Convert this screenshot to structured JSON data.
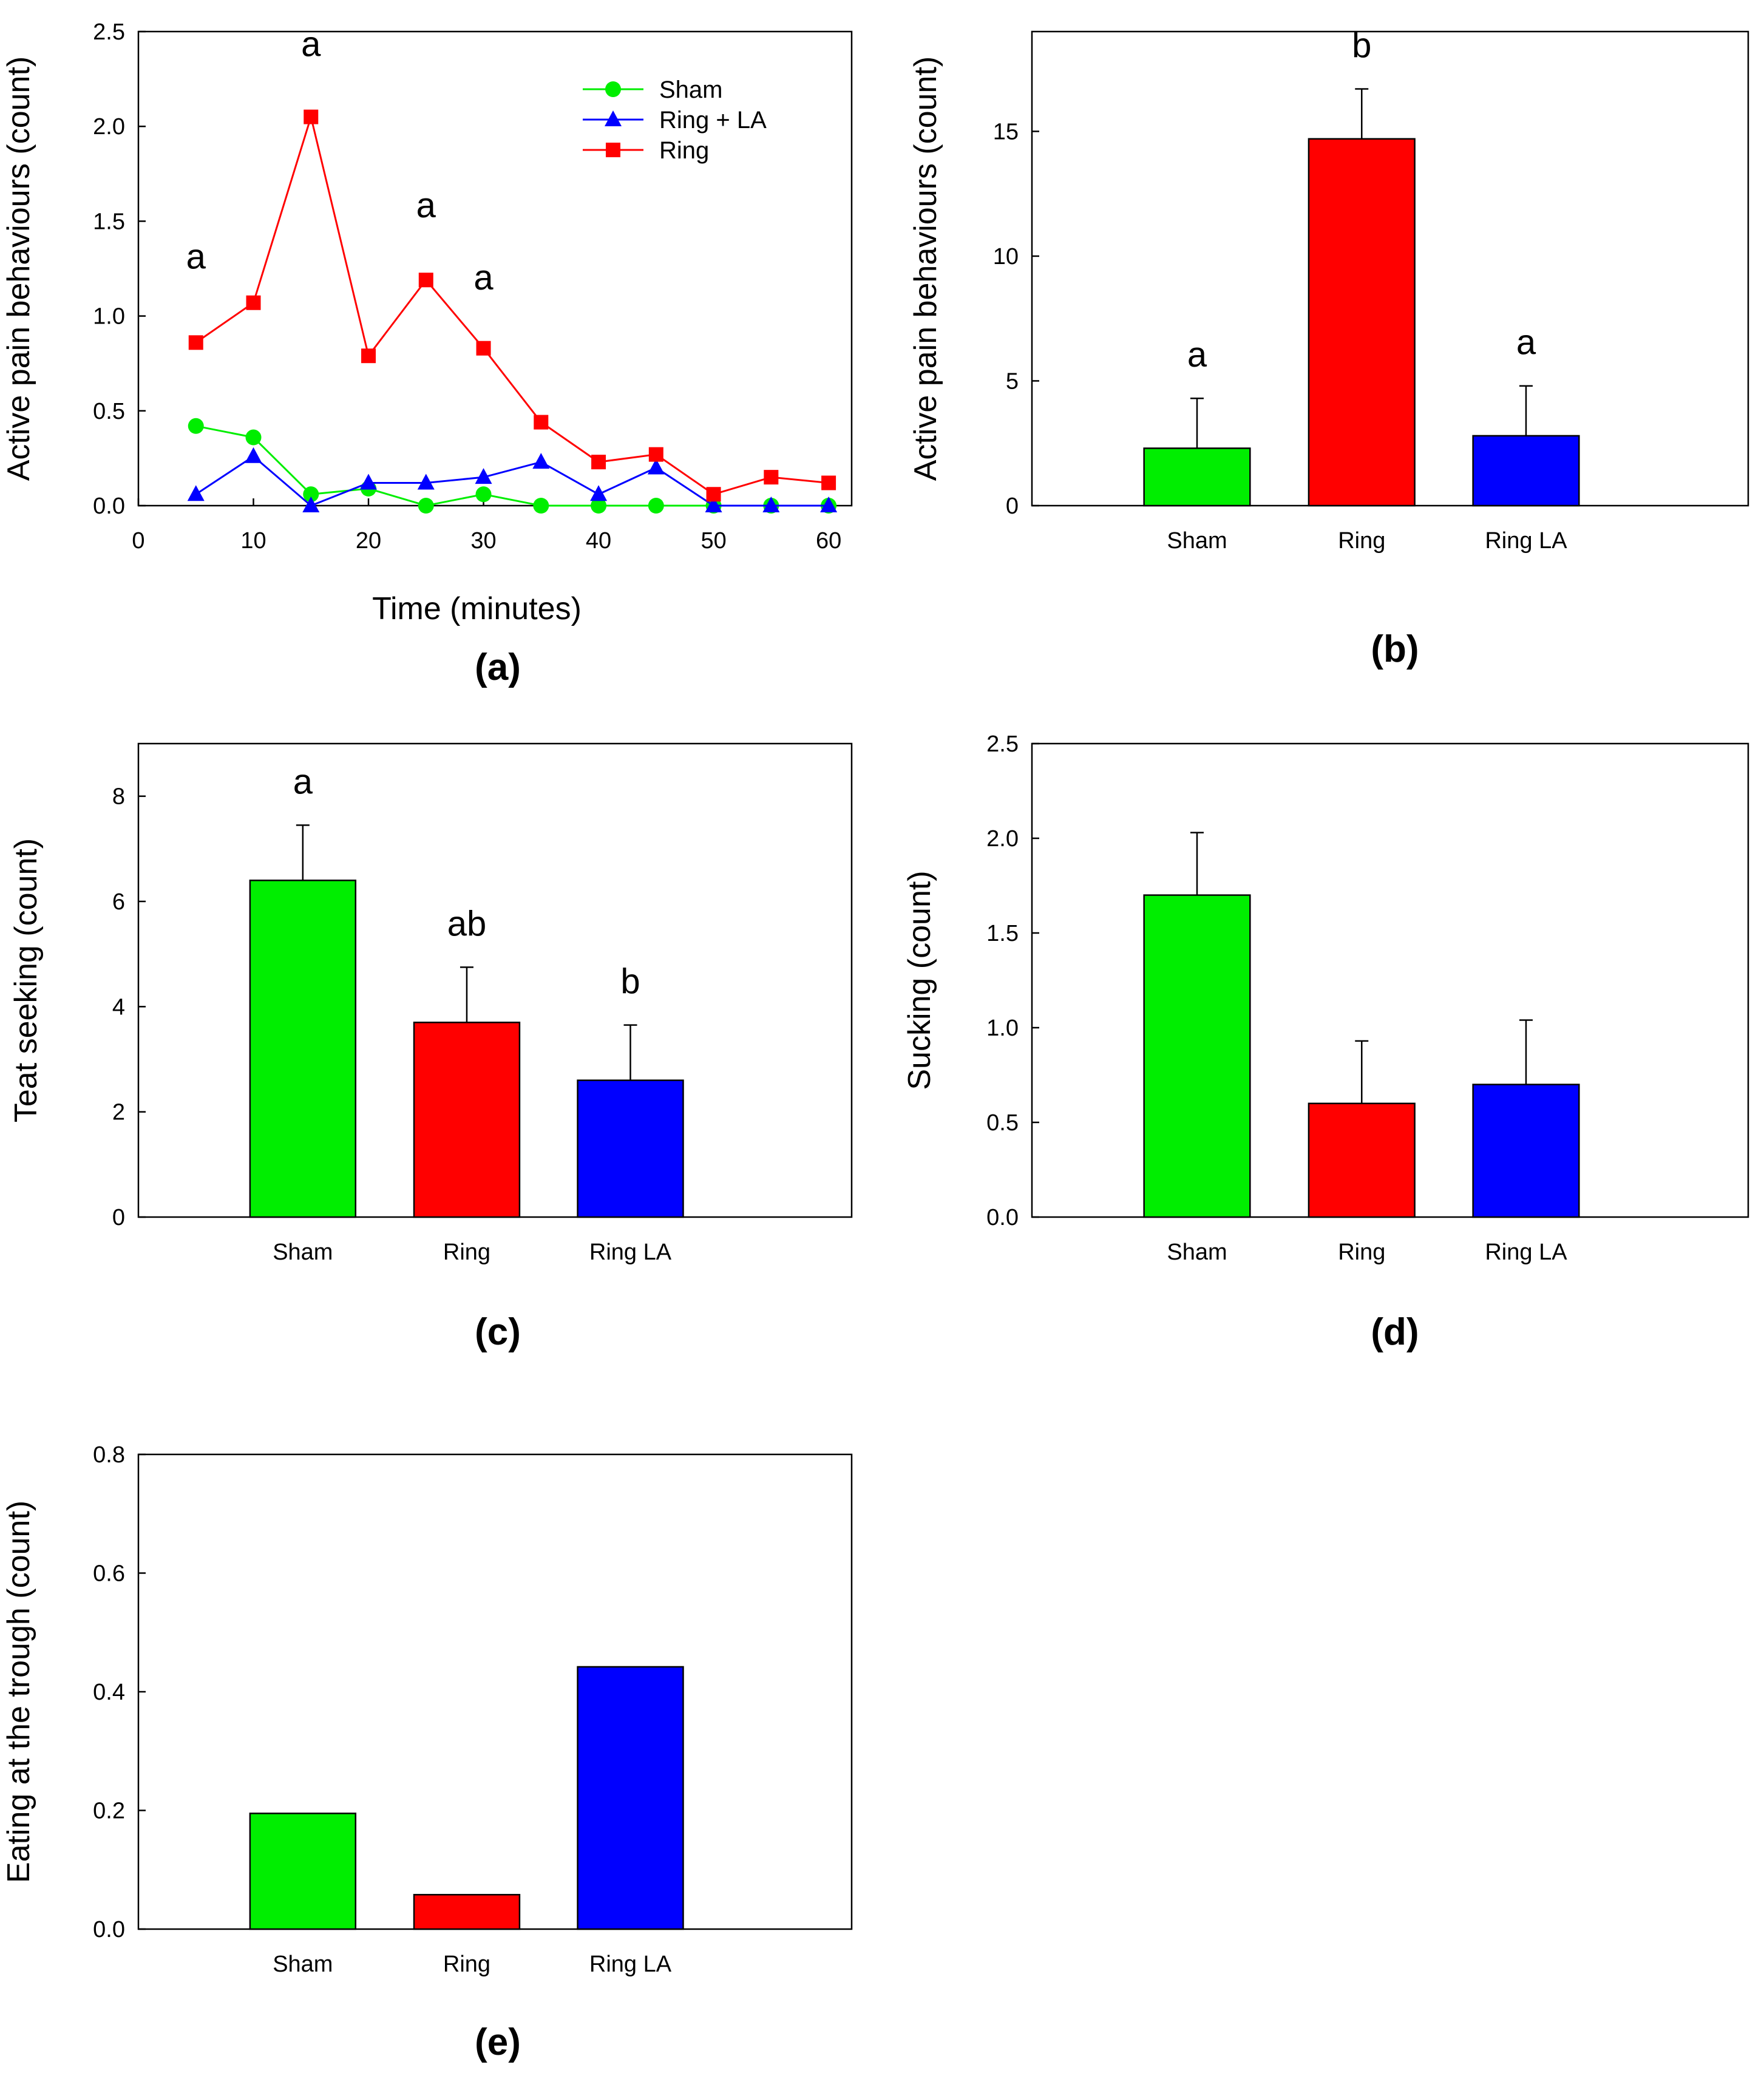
{
  "chart_data": [
    {
      "type": "line",
      "panel_label": "(a)",
      "xlabel": "Time (minutes)",
      "ylabel": "Active pain behaviours (count)",
      "xlim": [
        0,
        62
      ],
      "ylim": [
        0,
        2.5
      ],
      "xticks": [
        "0",
        "10",
        "20",
        "30",
        "40",
        "50",
        "60"
      ],
      "yticks": [
        "0.0",
        "0.5",
        "1.0",
        "1.5",
        "2.0",
        "2.5"
      ],
      "x": [
        5,
        10,
        15,
        20,
        25,
        30,
        35,
        40,
        45,
        50,
        55,
        60
      ],
      "legend_position": "top-right",
      "series": [
        {
          "name": "Sham",
          "color": "#00ee00",
          "marker": "circle",
          "values": [
            0.42,
            0.36,
            0.06,
            0.09,
            0.0,
            0.06,
            0.0,
            0.0,
            0.0,
            0.0,
            0.0,
            0.0
          ]
        },
        {
          "name": "Ring + LA",
          "color": "#0000ff",
          "marker": "triangle",
          "values": [
            0.06,
            0.26,
            0.0,
            0.12,
            0.12,
            0.15,
            0.23,
            0.06,
            0.2,
            0.0,
            0.0,
            0.0
          ]
        },
        {
          "name": "Ring",
          "color": "#ff0000",
          "marker": "square",
          "values": [
            0.86,
            1.07,
            2.05,
            0.79,
            1.19,
            0.83,
            0.44,
            0.23,
            0.27,
            0.06,
            0.15,
            0.12
          ]
        }
      ],
      "annotations": [
        {
          "text": "a",
          "x": 5,
          "y": 1.25
        },
        {
          "text": "a",
          "x": 15,
          "y": 2.37
        },
        {
          "text": "a",
          "x": 25,
          "y": 1.52
        },
        {
          "text": "a",
          "x": 30,
          "y": 1.14
        }
      ]
    },
    {
      "type": "bar",
      "panel_label": "(b)",
      "xlabel": "",
      "ylabel": "Active pain behaviours (count)",
      "ylim": [
        0,
        19
      ],
      "yticks": [
        "0",
        "5",
        "10",
        "15"
      ],
      "yticks_values": [
        0,
        5,
        10,
        15
      ],
      "categories": [
        "Sham",
        "Ring",
        "Ring LA"
      ],
      "values": [
        2.3,
        14.7,
        2.8
      ],
      "errors": [
        2.0,
        2.0,
        2.0
      ],
      "colors": [
        "#00ee00",
        "#ff0000",
        "#0000ff"
      ],
      "significance": [
        "a",
        "b",
        "a"
      ]
    },
    {
      "type": "bar",
      "panel_label": "(c)",
      "xlabel": "",
      "ylabel": "Teat seeking (count)",
      "ylim": [
        0,
        9
      ],
      "yticks": [
        "0",
        "2",
        "4",
        "6",
        "8"
      ],
      "yticks_values": [
        0,
        2,
        4,
        6,
        8
      ],
      "categories": [
        "Sham",
        "Ring",
        "Ring LA"
      ],
      "values": [
        6.4,
        3.7,
        2.6
      ],
      "errors": [
        1.05,
        1.05,
        1.05
      ],
      "colors": [
        "#00ee00",
        "#ff0000",
        "#0000ff"
      ],
      "significance": [
        "a",
        "ab",
        "b"
      ]
    },
    {
      "type": "bar",
      "panel_label": "(d)",
      "xlabel": "",
      "ylabel": "Sucking (count)",
      "ylim": [
        0,
        2.5
      ],
      "yticks": [
        "0.0",
        "0.5",
        "1.0",
        "1.5",
        "2.0",
        "2.5"
      ],
      "yticks_values": [
        0,
        0.5,
        1.0,
        1.5,
        2.0,
        2.5
      ],
      "categories": [
        "Sham",
        "Ring",
        "Ring LA"
      ],
      "values": [
        1.7,
        0.6,
        0.7
      ],
      "errors": [
        0.33,
        0.33,
        0.34
      ],
      "colors": [
        "#00ee00",
        "#ff0000",
        "#0000ff"
      ],
      "significance": []
    },
    {
      "type": "bar",
      "panel_label": "(e)",
      "xlabel": "",
      "ylabel": "Eating at the trough (count)",
      "ylim": [
        0,
        0.8
      ],
      "yticks": [
        "0.0",
        "0.2",
        "0.4",
        "0.6",
        "0.8"
      ],
      "yticks_values": [
        0,
        0.2,
        0.4,
        0.6,
        0.8
      ],
      "categories": [
        "Sham",
        "Ring",
        "Ring LA"
      ],
      "values": [
        0.195,
        0.058,
        0.442
      ],
      "errors": [],
      "colors": [
        "#00ee00",
        "#ff0000",
        "#0000ff"
      ],
      "significance": []
    }
  ]
}
